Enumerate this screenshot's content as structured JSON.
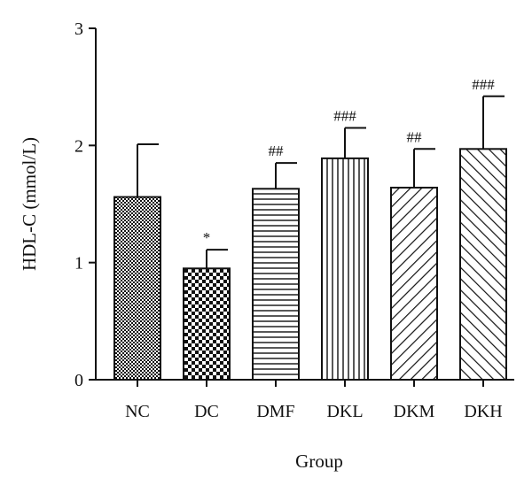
{
  "chart_data": {
    "type": "bar",
    "categories": [
      "NC",
      "DC",
      "DMF",
      "DKL",
      "DKM",
      "DKH"
    ],
    "values": [
      1.56,
      0.95,
      1.63,
      1.89,
      1.64,
      1.97
    ],
    "errors": [
      0.45,
      0.16,
      0.22,
      0.26,
      0.33,
      0.45
    ],
    "annotations": [
      "",
      "*",
      "##",
      "###",
      "##",
      "###"
    ],
    "patterns": [
      "fine-checker",
      "coarse-checker",
      "horizontal-lines",
      "vertical-lines",
      "diagonal-forward",
      "diagonal-backward"
    ],
    "xlabel": "Group",
    "ylabel": "HDL-C (mmol/L)",
    "ylim": [
      0,
      3
    ],
    "yticks": [
      "0",
      "1",
      "2",
      "3"
    ],
    "grid": false,
    "legend": "none",
    "colors": {
      "ink": "#111111",
      "fill": "#ffffff"
    }
  }
}
